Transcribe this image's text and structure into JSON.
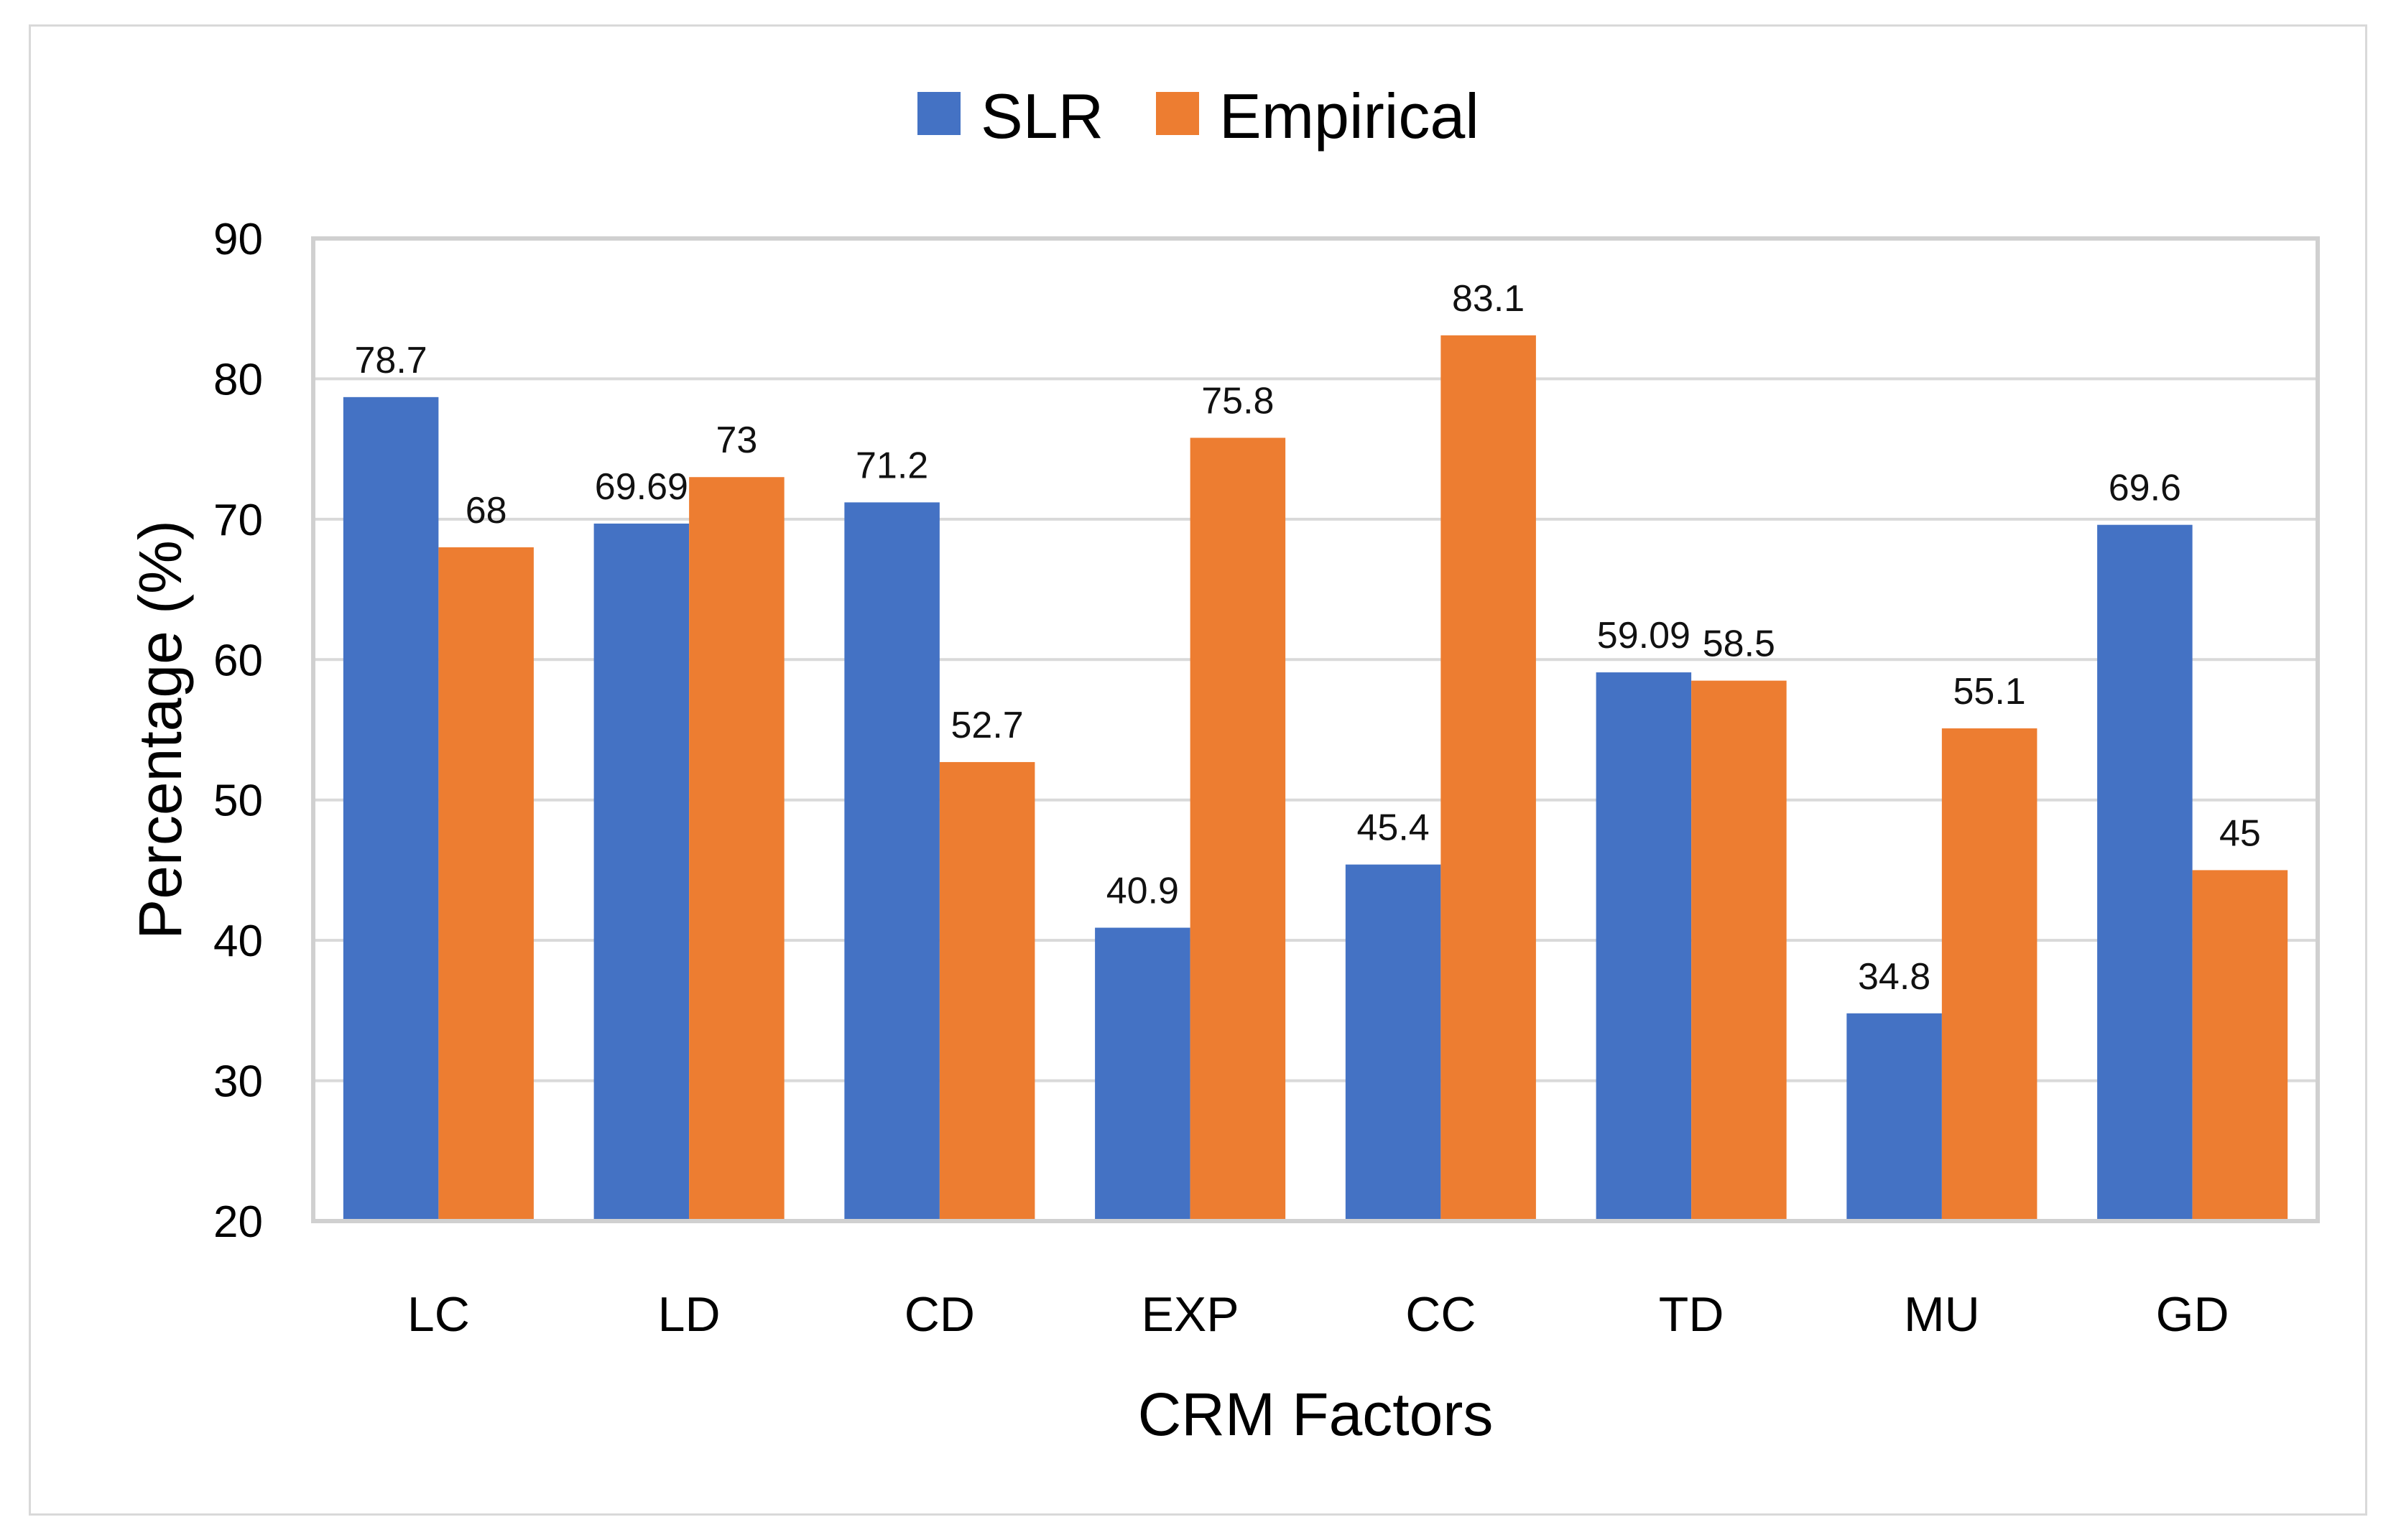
{
  "chart_data": {
    "type": "bar",
    "title": "",
    "xlabel": "CRM Factors",
    "ylabel": "Percentage (%)",
    "ylim": [
      20,
      90
    ],
    "yticks": [
      20,
      30,
      40,
      50,
      60,
      70,
      80,
      90
    ],
    "grid": true,
    "legend_position": "top-center",
    "categories": [
      "LC",
      "LD",
      "CD",
      "EXP",
      "CC",
      "TD",
      "MU",
      "GD"
    ],
    "series": [
      {
        "name": "SLR",
        "color": "#4472c4",
        "values": [
          78.7,
          69.69,
          71.2,
          40.9,
          45.4,
          59.09,
          34.8,
          69.6
        ],
        "labels": [
          "78.7",
          "69.69",
          "71.2",
          "40.9",
          "45.4",
          "59.09",
          "34.8",
          "69.6"
        ]
      },
      {
        "name": "Empirical",
        "color": "#ed7d31",
        "values": [
          68,
          73,
          52.7,
          75.8,
          83.1,
          58.5,
          55.1,
          45
        ],
        "labels": [
          "68",
          "73",
          "52.7",
          "75.8",
          "83.1",
          "58.5",
          "55.1",
          "45"
        ]
      }
    ]
  }
}
